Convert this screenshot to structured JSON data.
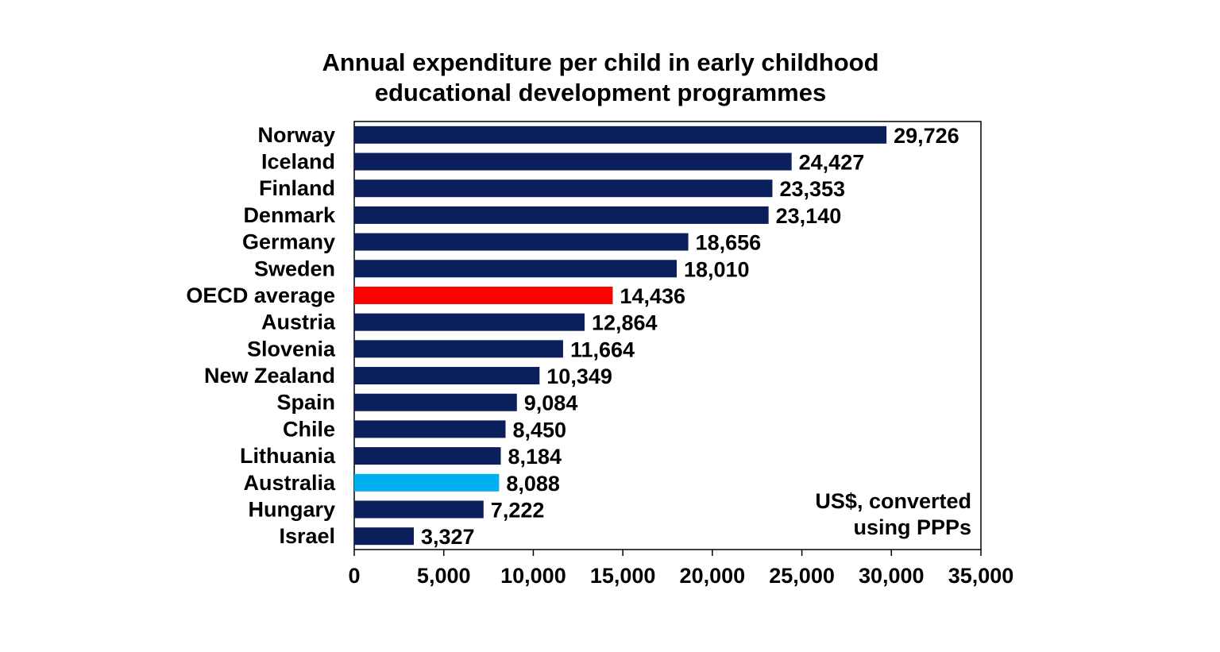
{
  "chart_data": {
    "type": "bar",
    "orientation": "horizontal",
    "title": [
      "Annual expenditure per child in early childhood",
      "educational development programmes"
    ],
    "categories": [
      "Norway",
      "Iceland",
      "Finland",
      "Denmark",
      "Germany",
      "Sweden",
      "OECD average",
      "Austria",
      "Slovenia",
      "New Zealand",
      "Spain",
      "Chile",
      "Lithuania",
      "Australia",
      "Hungary",
      "Israel"
    ],
    "values": [
      29726,
      24427,
      23353,
      23140,
      18656,
      18010,
      14436,
      12864,
      11664,
      10349,
      9084,
      8450,
      8184,
      8088,
      7222,
      3327
    ],
    "value_labels": [
      "29,726",
      "24,427",
      "23,353",
      "23,140",
      "18,656",
      "18,010",
      "14,436",
      "12,864",
      "11,664",
      "10,349",
      "9,084",
      "8,450",
      "8,184",
      "8,088",
      "7,222",
      "3,327"
    ],
    "bar_colors": [
      "#0B1F5C",
      "#0B1F5C",
      "#0B1F5C",
      "#0B1F5C",
      "#0B1F5C",
      "#0B1F5C",
      "#FF0000",
      "#0B1F5C",
      "#0B1F5C",
      "#0B1F5C",
      "#0B1F5C",
      "#0B1F5C",
      "#0B1F5C",
      "#00B0F0",
      "#0B1F5C",
      "#0B1F5C"
    ],
    "xlim": [
      0,
      35000
    ],
    "x_ticks": [
      0,
      5000,
      10000,
      15000,
      20000,
      25000,
      30000,
      35000
    ],
    "x_tick_labels": [
      "0",
      "5,000",
      "10,000",
      "15,000",
      "20,000",
      "25,000",
      "30,000",
      "35,000"
    ],
    "annotation": [
      "US$, converted",
      "using PPPs"
    ],
    "xlabel": "",
    "ylabel": "",
    "grid": false
  }
}
